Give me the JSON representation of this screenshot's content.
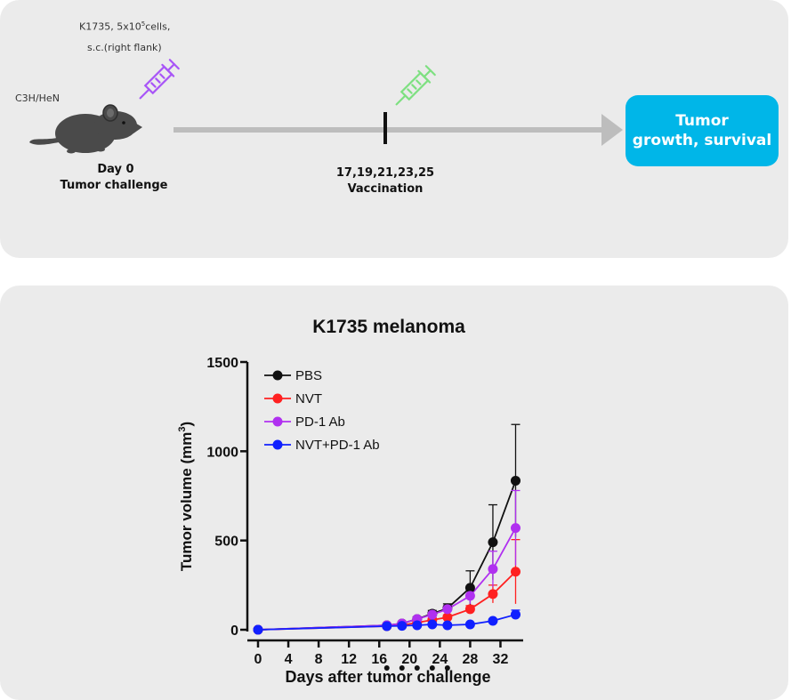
{
  "protocol": {
    "cells_line1": "K1735, 5x10",
    "cells_sup": "5",
    "cells_line1_suffix": "cells,",
    "cells_line2": "s.c.(right flank)",
    "mouse_strain": "C3H/HeN",
    "day_label": "Day  0",
    "challenge_label": "Tumor challenge",
    "vaccination_days": "17,19,21,23,25",
    "vaccination_label": "Vaccination",
    "outcome_line1": "Tumor",
    "outcome_line2": "growth, survival"
  },
  "colors": {
    "panel_bg": "#ebebeb",
    "outcome_bg": "#00b6e8",
    "syringe_purple": "#a855f7",
    "syringe_green": "#7ee081",
    "arrow": "#bdbdbd"
  },
  "chart_data": {
    "type": "line",
    "title": "K1735 melanoma",
    "xlabel": "Days after tumor challenge",
    "ylabel": "Tumor volume (mm",
    "ylabel_sup": "3",
    "ylabel_close": ")",
    "xlim": [
      0,
      35
    ],
    "ylim": [
      0,
      1500
    ],
    "xticks": [
      0,
      4,
      8,
      12,
      16,
      20,
      24,
      28,
      32
    ],
    "yticks": [
      0,
      500,
      1000,
      1500
    ],
    "vaccination_days": [
      17,
      19,
      21,
      23,
      25
    ],
    "legend_position": "top-left",
    "x": [
      0,
      17,
      19,
      21,
      23,
      25,
      28,
      31,
      34
    ],
    "series": [
      {
        "name": "PBS",
        "color": "#111111",
        "values": [
          0,
          25,
          35,
          60,
          90,
          120,
          235,
          490,
          835
        ],
        "errors": [
          0,
          5,
          8,
          12,
          18,
          25,
          95,
          210,
          315
        ]
      },
      {
        "name": "NVT",
        "color": "#ff2020",
        "values": [
          0,
          20,
          25,
          40,
          55,
          70,
          115,
          200,
          325
        ],
        "errors": [
          0,
          4,
          5,
          8,
          10,
          14,
          20,
          50,
          180
        ]
      },
      {
        "name": "PD-1 Ab",
        "color": "#b030f0",
        "values": [
          0,
          25,
          35,
          60,
          85,
          115,
          190,
          340,
          570
        ],
        "errors": [
          0,
          5,
          8,
          12,
          15,
          20,
          45,
          100,
          210
        ]
      },
      {
        "name": "NVT+PD-1 Ab",
        "color": "#1020ff",
        "values": [
          0,
          20,
          22,
          25,
          30,
          25,
          30,
          50,
          85
        ],
        "errors": [
          0,
          3,
          4,
          4,
          5,
          4,
          6,
          10,
          25
        ]
      }
    ]
  }
}
